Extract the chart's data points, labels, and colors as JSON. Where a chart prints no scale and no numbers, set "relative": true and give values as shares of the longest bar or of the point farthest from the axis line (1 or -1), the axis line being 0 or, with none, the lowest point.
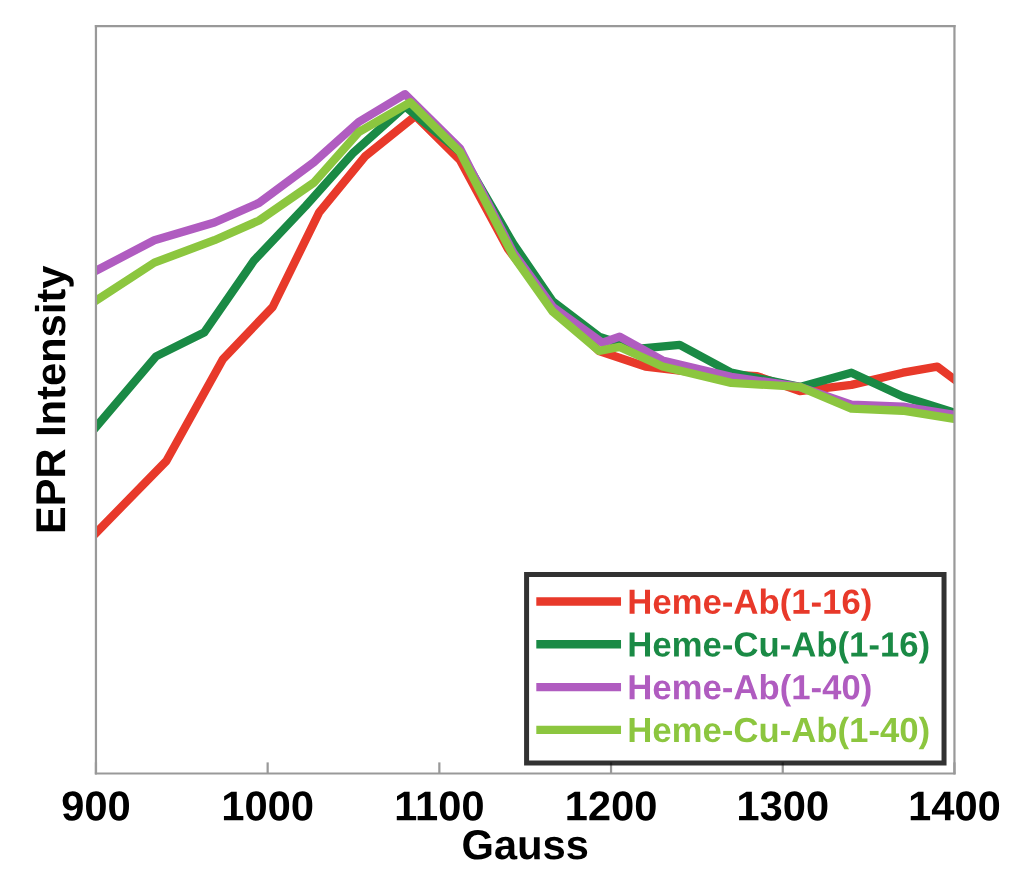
{
  "chart_data": {
    "type": "line",
    "xlabel": "Gauss",
    "ylabel": "EPR Intensity",
    "relative": true,
    "xlim": [
      900,
      1400
    ],
    "xticks": [
      900,
      1000,
      1100,
      1200,
      1300,
      1400
    ],
    "grid": false,
    "legend": "bottom right",
    "marker": "none",
    "line_style": "solid",
    "series": [
      {
        "name": "Heme-Ab(1-16)",
        "color": "#e8392a",
        "x": [
          900,
          941,
          974,
          1003,
          1030,
          1057,
          1086,
          1112,
          1140,
          1166,
          1193,
          1220,
          1250,
          1285,
          1310,
          1340,
          1370,
          1390,
          1400
        ],
        "values": [
          0.354,
          0.46,
          0.61,
          0.687,
          0.826,
          0.909,
          0.968,
          0.903,
          0.772,
          0.687,
          0.622,
          0.599,
          0.59,
          0.585,
          0.563,
          0.572,
          0.59,
          0.599,
          0.58
        ]
      },
      {
        "name": "Heme-Cu-Ab(1-16)",
        "color": "#1a8a45",
        "x": [
          900,
          935,
          963,
          992,
          1022,
          1050,
          1080,
          1112,
          1143,
          1166,
          1193,
          1215,
          1240,
          1270,
          1310,
          1340,
          1370,
          1400
        ],
        "values": [
          0.51,
          0.614,
          0.649,
          0.755,
          0.835,
          0.914,
          0.982,
          0.915,
          0.78,
          0.695,
          0.643,
          0.625,
          0.631,
          0.59,
          0.569,
          0.59,
          0.555,
          0.531
        ]
      },
      {
        "name": "Heme-Ab(1-40)",
        "color": "#b05cc0",
        "x": [
          900,
          934,
          969,
          995,
          1027,
          1053,
          1080,
          1112,
          1143,
          1166,
          1195,
          1205,
          1230,
          1270,
          1310,
          1340,
          1370,
          1400
        ],
        "values": [
          0.74,
          0.785,
          0.811,
          0.84,
          0.9,
          0.959,
          1,
          0.92,
          0.767,
          0.687,
          0.634,
          0.643,
          0.608,
          0.584,
          0.569,
          0.543,
          0.54,
          0.528
        ]
      },
      {
        "name": "Heme-Cu-Ab(1-40)",
        "color": "#8cc63f",
        "x": [
          900,
          934,
          969,
          995,
          1027,
          1053,
          1083,
          1112,
          1143,
          1166,
          1193,
          1205,
          1230,
          1270,
          1310,
          1340,
          1370,
          1400
        ],
        "values": [
          0.696,
          0.752,
          0.785,
          0.814,
          0.87,
          0.944,
          0.988,
          0.915,
          0.762,
          0.68,
          0.622,
          0.628,
          0.599,
          0.575,
          0.569,
          0.537,
          0.534,
          0.522
        ]
      }
    ]
  }
}
